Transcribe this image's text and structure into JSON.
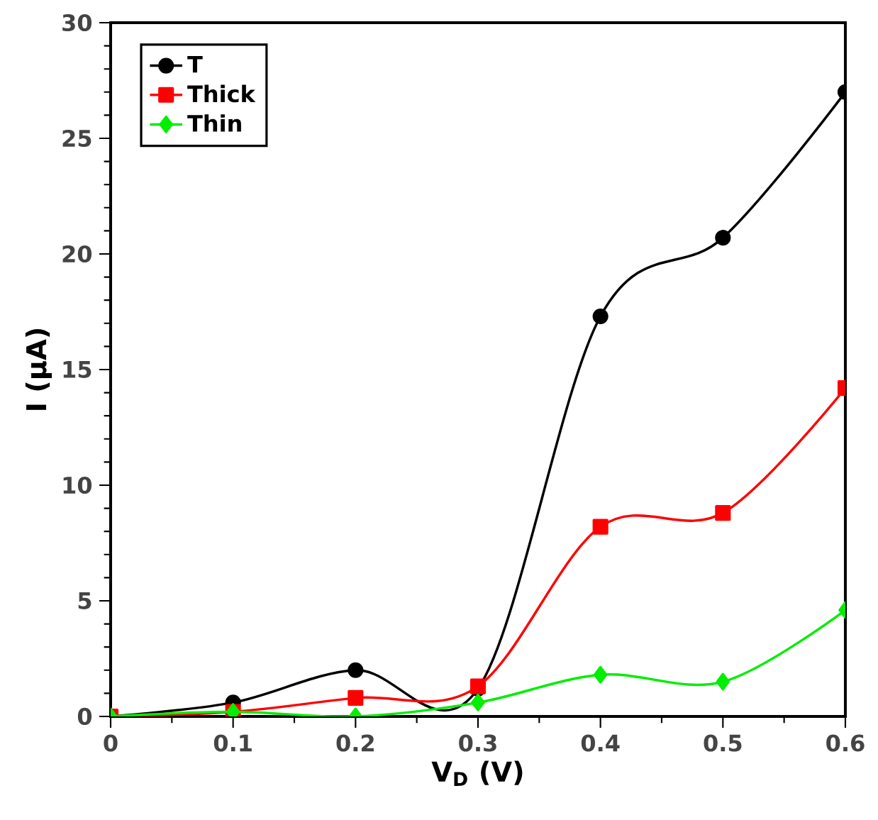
{
  "chart_data": {
    "type": "line",
    "xlabel": "V$_{D}$ (V)",
    "ylabel": "I (μA)",
    "x": [
      0,
      0.1,
      0.2,
      0.3,
      0.4,
      0.5,
      0.6
    ],
    "series": [
      {
        "name": "T",
        "color": "#000000",
        "marker": "circle",
        "values": [
          0,
          0.6,
          2.0,
          1.2,
          17.3,
          20.7,
          27.0
        ]
      },
      {
        "name": "Thick",
        "color": "#ff0000",
        "marker": "square",
        "values": [
          0,
          0.2,
          0.8,
          1.3,
          8.2,
          8.8,
          14.2
        ]
      },
      {
        "name": "Thin",
        "color": "#00ee00",
        "marker": "diamond",
        "values": [
          0,
          0.2,
          0.0,
          0.6,
          1.8,
          1.5,
          4.6
        ]
      }
    ],
    "xlim": [
      0,
      0.6
    ],
    "ylim": [
      0,
      30
    ],
    "xticks": [
      0,
      0.1,
      0.2,
      0.3,
      0.4,
      0.5,
      0.6
    ],
    "yticks": [
      0,
      5,
      10,
      15,
      20,
      25,
      30
    ],
    "legend": "top left",
    "grid": false
  }
}
